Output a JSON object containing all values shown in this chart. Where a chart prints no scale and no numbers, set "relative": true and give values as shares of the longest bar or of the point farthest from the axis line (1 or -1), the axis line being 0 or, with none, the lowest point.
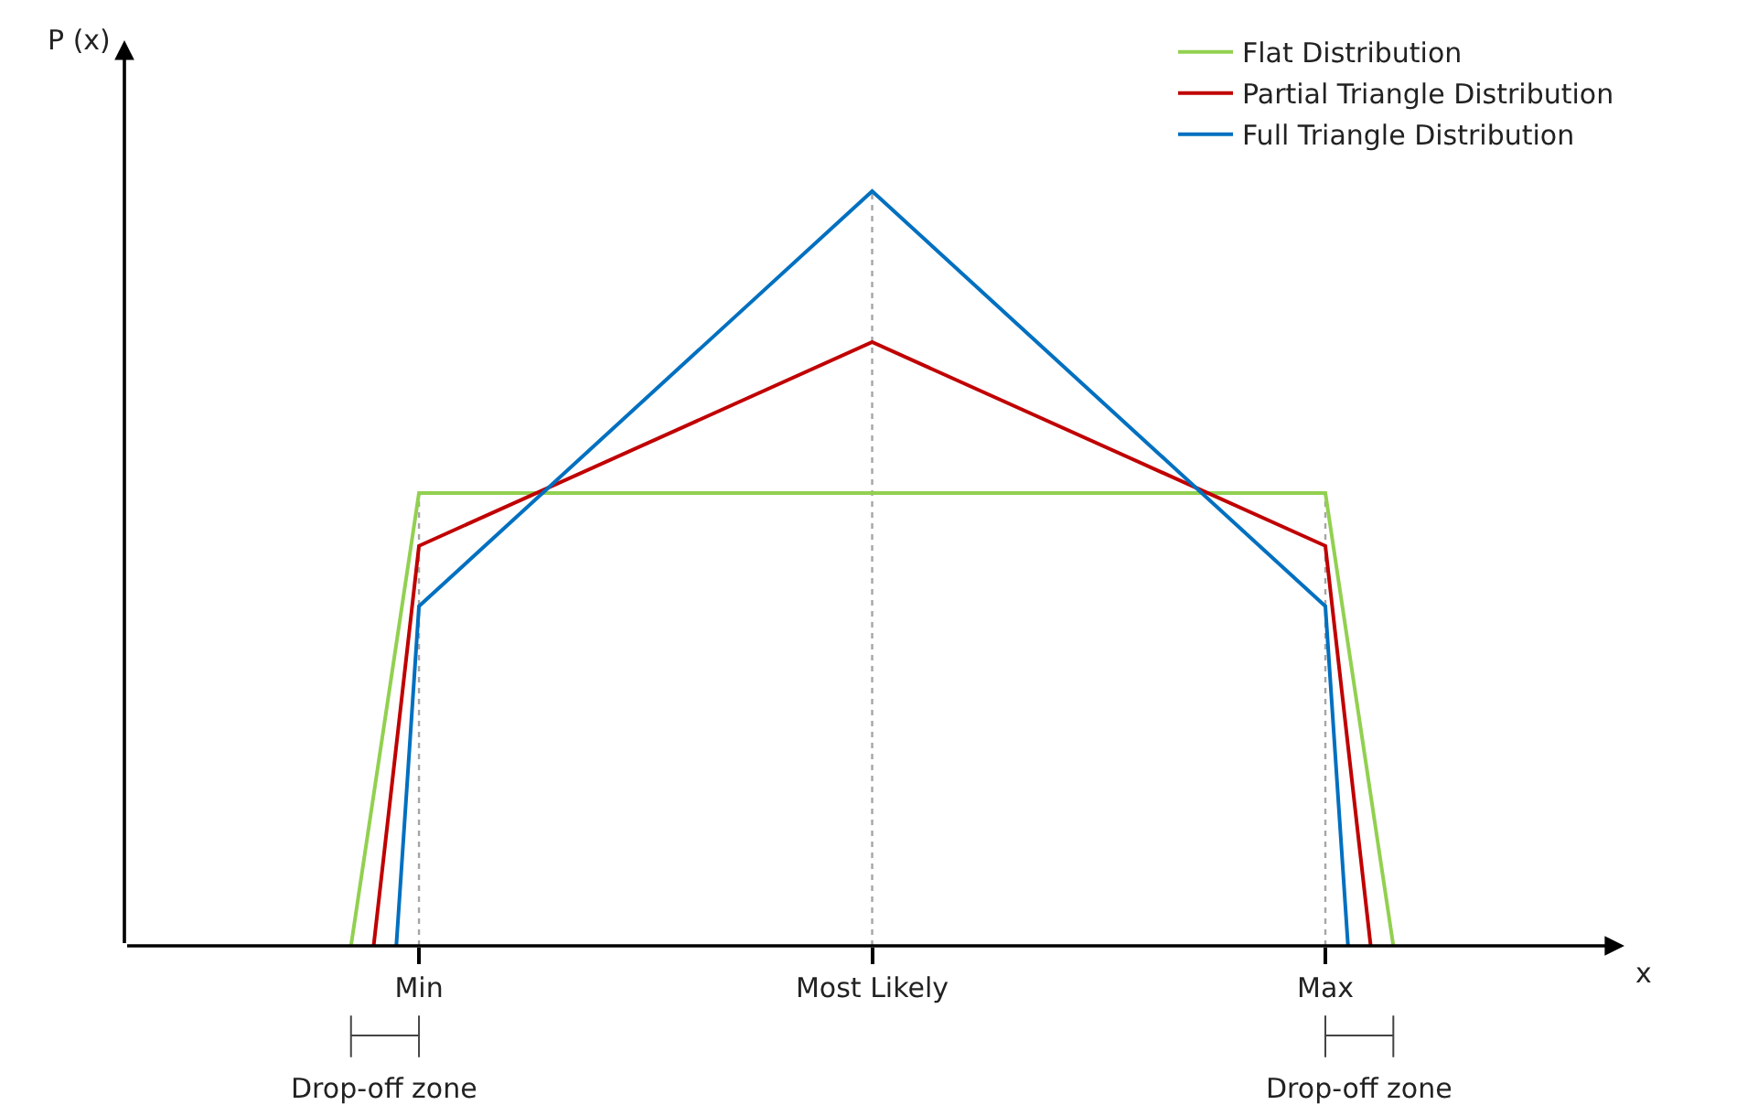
{
  "chart_data": {
    "type": "line",
    "relative": true,
    "categories": [
      null,
      null,
      null,
      "Min",
      null,
      null,
      null,
      null,
      null,
      null,
      null,
      null,
      null,
      null,
      null,
      null,
      null,
      null,
      null,
      null,
      null,
      null,
      null,
      "Most Likely",
      null,
      null,
      null,
      null,
      null,
      null,
      null,
      null,
      null,
      null,
      null,
      null,
      null,
      null,
      null,
      null,
      null,
      null,
      null,
      "Max",
      null,
      null,
      null
    ],
    "series": [
      {
        "name": "Flat Distribution",
        "color": "#92d050",
        "values": [
          0,
          null,
          null,
          0.6,
          null,
          null,
          null,
          null,
          null,
          null,
          null,
          null,
          null,
          null,
          null,
          null,
          null,
          null,
          null,
          null,
          null,
          null,
          null,
          0.6,
          null,
          null,
          null,
          null,
          null,
          null,
          null,
          null,
          null,
          null,
          null,
          null,
          null,
          null,
          null,
          null,
          null,
          null,
          null,
          0.6,
          null,
          null,
          0
        ]
      },
      {
        "name": "Partial Triangle Distribution",
        "color": "#c00000",
        "values": [
          null,
          0,
          null,
          0.53,
          null,
          null,
          null,
          null,
          null,
          null,
          null,
          null,
          null,
          null,
          null,
          null,
          null,
          null,
          null,
          null,
          null,
          null,
          null,
          0.8,
          null,
          null,
          null,
          null,
          null,
          null,
          null,
          null,
          null,
          null,
          null,
          null,
          null,
          null,
          null,
          null,
          null,
          null,
          null,
          0.53,
          null,
          0,
          null
        ]
      },
      {
        "name": "Full Triangle Distribution",
        "color": "#0070c0",
        "values": [
          null,
          null,
          0,
          0.45,
          null,
          null,
          null,
          null,
          null,
          null,
          null,
          null,
          null,
          null,
          null,
          null,
          null,
          null,
          null,
          null,
          null,
          null,
          null,
          1,
          null,
          null,
          null,
          null,
          null,
          null,
          null,
          null,
          null,
          null,
          null,
          null,
          null,
          null,
          null,
          null,
          null,
          null,
          null,
          0.45,
          0,
          null,
          null
        ]
      }
    ],
    "ref_lines": [
      {
        "axis": "x",
        "value": "Min",
        "color": "#a6a6a6",
        "line_style": "dotted"
      },
      {
        "axis": "x",
        "value": "Most Likely",
        "color": "#a6a6a6",
        "line_style": "dotted"
      },
      {
        "axis": "x",
        "value": "Max",
        "color": "#a6a6a6",
        "line_style": "dotted"
      }
    ],
    "annotations": [
      "Drop-off zone",
      "Drop-off zone",
      "P (x)",
      "x"
    ],
    "grid": false,
    "legend": "top right",
    "marker": "none",
    "line_style": "solid"
  }
}
